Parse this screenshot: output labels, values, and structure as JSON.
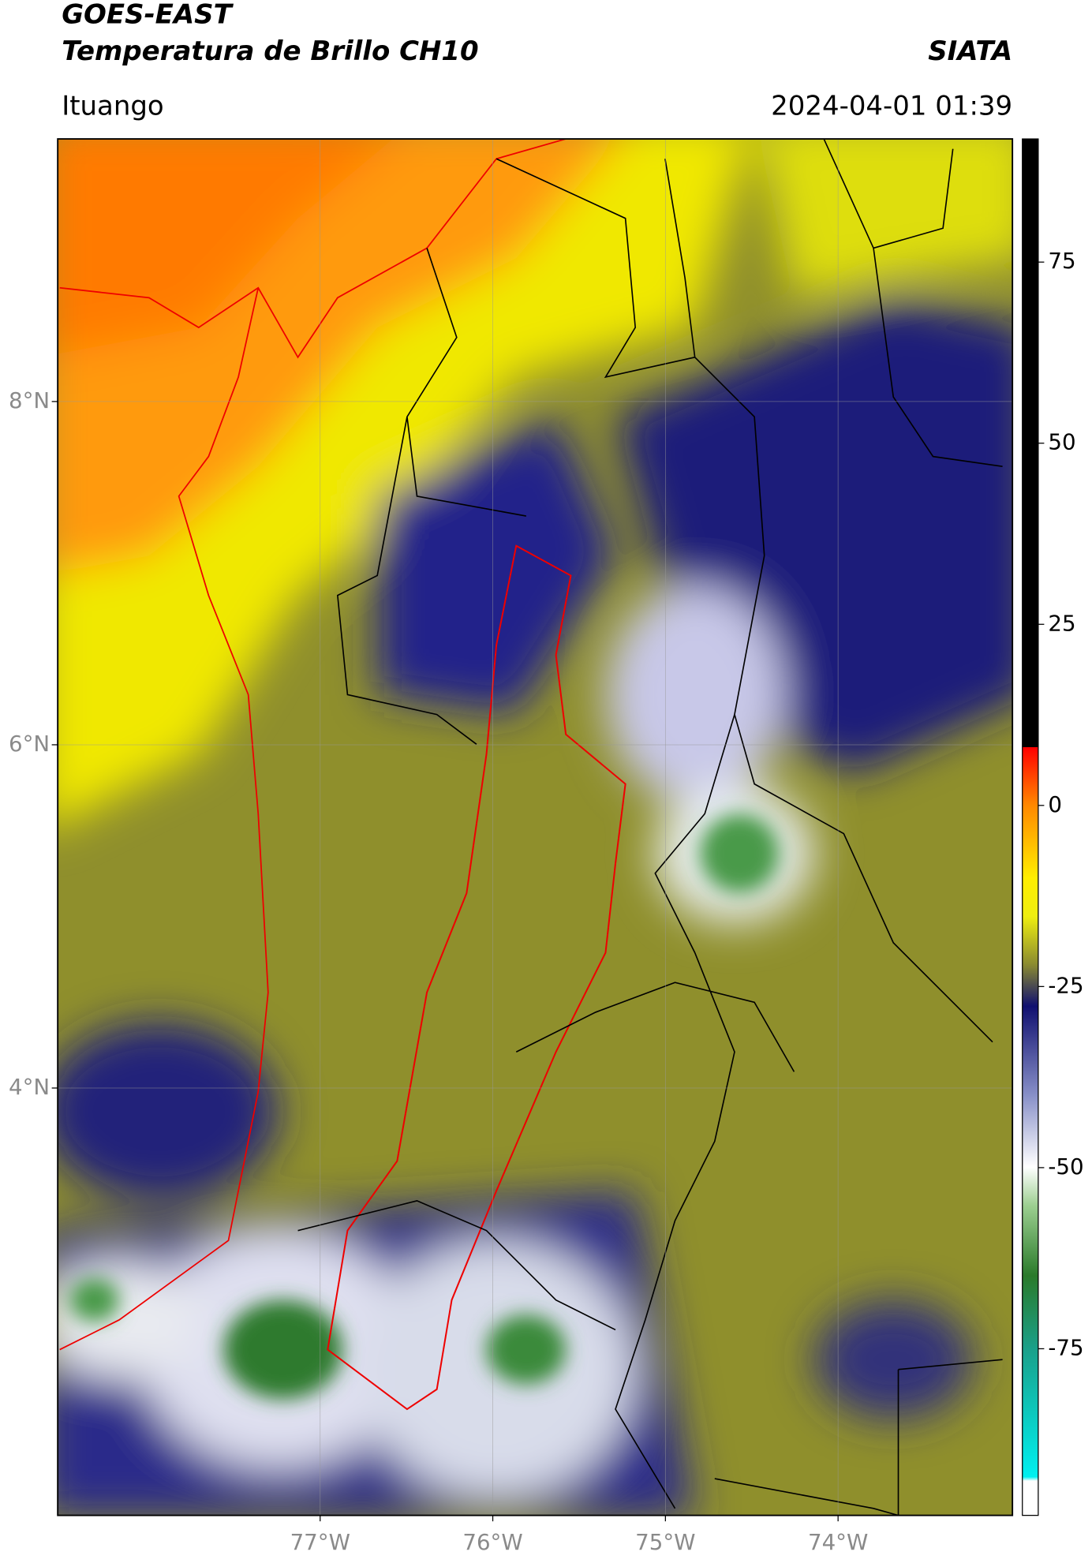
{
  "header": {
    "title": "GOES-EAST",
    "subtitle": "Temperatura de Brillo CH10",
    "credit": "SIATA",
    "location": "Ituango",
    "datetime": "2024-04-01 01:39"
  },
  "map": {
    "xlim": [
      -78.52,
      -72.99
    ],
    "ylim": [
      1.51,
      9.53
    ],
    "xticks": [
      {
        "value": -77,
        "label": "77°W"
      },
      {
        "value": -76,
        "label": "76°W"
      },
      {
        "value": -75,
        "label": "75°W"
      },
      {
        "value": -74,
        "label": "74°W"
      }
    ],
    "yticks": [
      {
        "value": 8,
        "label": "8°N"
      },
      {
        "value": 6,
        "label": "6°N"
      },
      {
        "value": 4,
        "label": "4°N"
      }
    ]
  },
  "colorbar": {
    "lim": [
      -98,
      92
    ],
    "ticks": [
      75,
      50,
      25,
      0,
      -25,
      -50,
      -75
    ]
  }
}
